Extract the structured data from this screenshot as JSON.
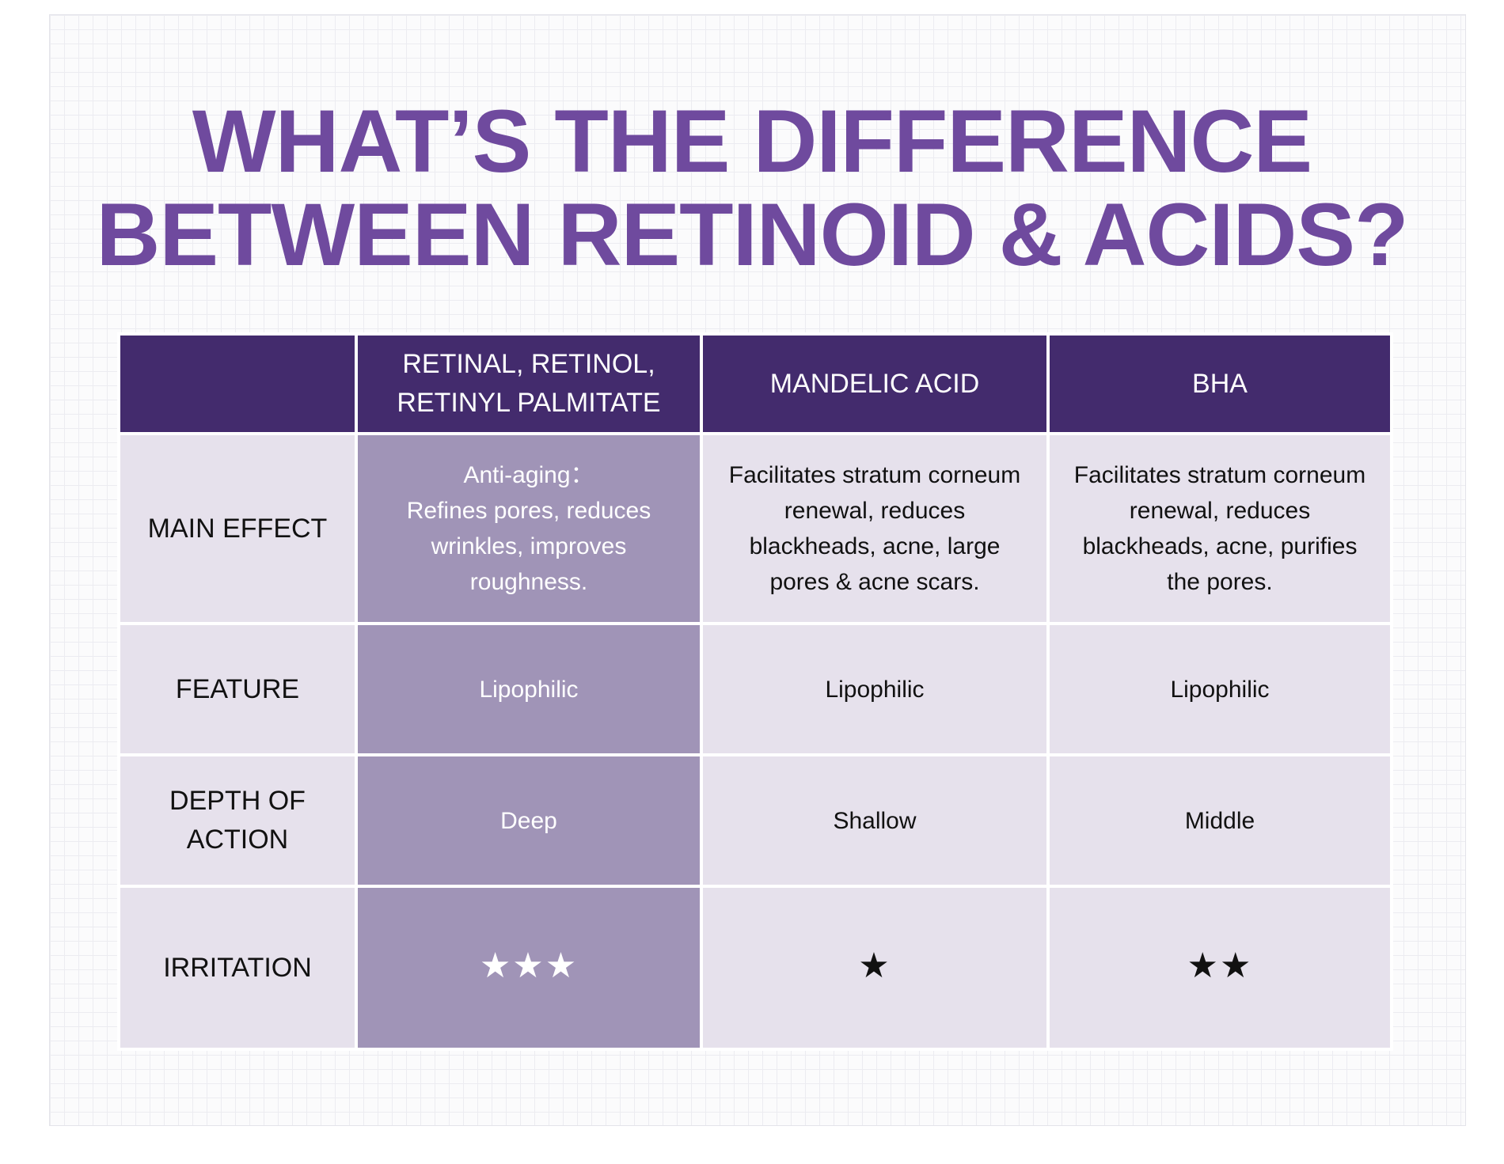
{
  "title": {
    "line1": "WHAT’S THE DIFFERENCE",
    "line2": "BETWEEN RETINOID & ACIDS?"
  },
  "colors": {
    "title": "#6f4a9e",
    "header_bg": "#432b6d",
    "highlight_bg": "#a094b7",
    "cell_bg": "#e6e1ec"
  },
  "table": {
    "columns": [
      "",
      "RETINAL, RETINOL, RETINYL PALMITATE",
      "MANDELIC ACID",
      "BHA"
    ],
    "rows": [
      {
        "label": "MAIN EFFECT",
        "cells": [
          "Anti-aging：\nRefines pores, reduces wrinkles, improves roughness.",
          "Facilitates stratum corneum renewal, reduces blackheads, acne, large pores & acne scars.",
          "Facilitates stratum corneum renewal, reduces blackheads, acne, purifies the pores."
        ]
      },
      {
        "label": "FEATURE",
        "cells": [
          "Lipophilic",
          "Lipophilic",
          "Lipophilic"
        ]
      },
      {
        "label": "DEPTH OF ACTION",
        "cells": [
          "Deep",
          "Shallow",
          "Middle"
        ]
      },
      {
        "label": "IRRITATION",
        "cells": [
          "★★★",
          "★",
          "★★"
        ]
      }
    ]
  }
}
